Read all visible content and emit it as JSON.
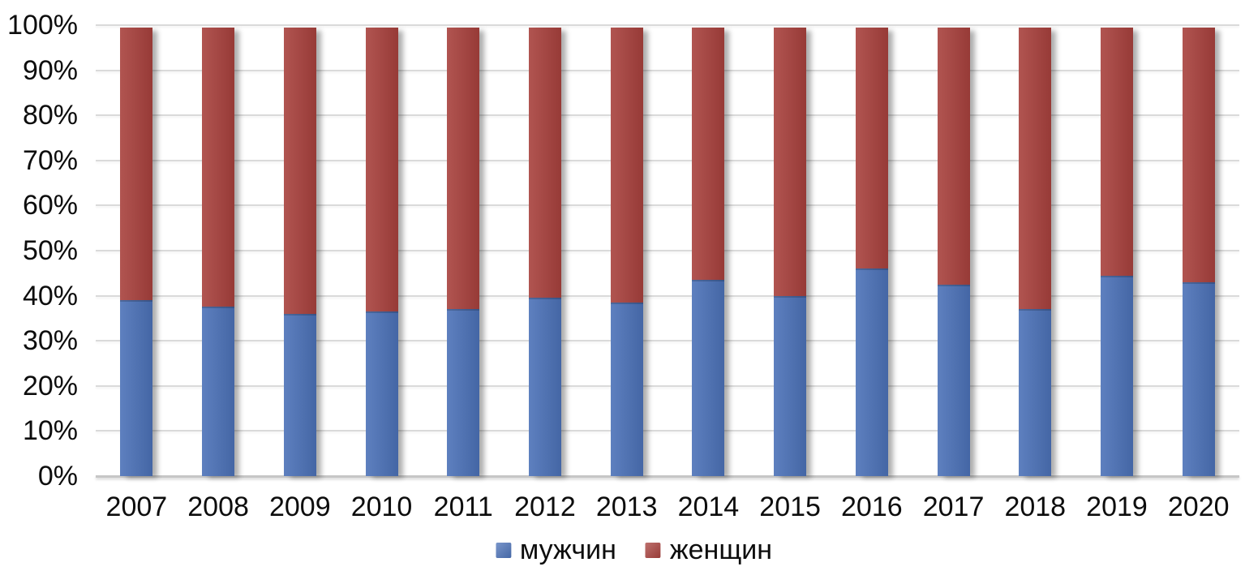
{
  "chart_data": {
    "type": "bar",
    "variant": "stacked-100-percent",
    "title": "",
    "xlabel": "",
    "ylabel": "",
    "ylim": [
      0,
      100
    ],
    "grid": true,
    "legend_position": "bottom",
    "categories": [
      "2007",
      "2008",
      "2009",
      "2010",
      "2011",
      "2012",
      "2013",
      "2014",
      "2015",
      "2016",
      "2017",
      "2018",
      "2019",
      "2020"
    ],
    "series": [
      {
        "name": "мужчин",
        "color": "#4C72B8",
        "values": [
          39,
          37.5,
          36,
          36.5,
          37,
          39.5,
          38.5,
          43.5,
          40,
          46,
          42.5,
          37,
          44.5,
          43
        ]
      },
      {
        "name": "женщин",
        "color": "#A8413D",
        "values": [
          61,
          62.5,
          64,
          63.5,
          63,
          60.5,
          61.5,
          56.5,
          60,
          54,
          57.5,
          63,
          55.5,
          57
        ]
      }
    ],
    "yticks": [
      "0%",
      "10%",
      "20%",
      "30%",
      "40%",
      "50%",
      "60%",
      "70%",
      "80%",
      "90%",
      "100%"
    ]
  },
  "colors": {
    "gridline": "#DADADA",
    "baseline": "#C6C6C6",
    "text": "#0d0d0d",
    "background": "#ffffff"
  }
}
